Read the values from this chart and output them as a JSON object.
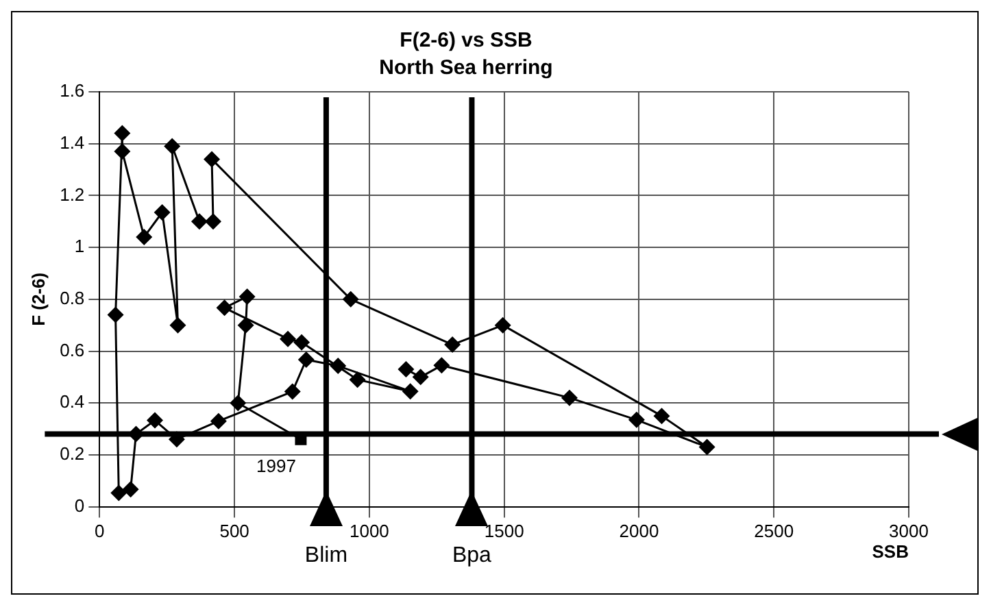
{
  "chart_data": {
    "type": "line",
    "title": "F(2-6) vs SSB",
    "subtitle": "North Sea herring",
    "xlabel": "SSB",
    "ylabel": "F (2-6)",
    "xlim": [
      0,
      3000
    ],
    "xticks": [
      0,
      500,
      1000,
      1500,
      2000,
      2500,
      3000
    ],
    "ylim": [
      0,
      1.6
    ],
    "yticks": [
      0,
      0.2,
      0.4,
      0.6,
      0.8,
      1,
      1.2,
      1.4,
      1.6
    ],
    "grid": true,
    "series": [
      {
        "color": "#000000",
        "marker": "diamond",
        "x": [
          1136,
          1190,
          1268,
          1742,
          1991,
          2252,
          2084,
          1495,
          1308,
          931,
          416,
          421,
          370,
          269,
          290,
          232,
          165,
          84,
          84,
          59,
          71,
          115,
          135,
          205,
          286,
          441,
          715,
          766,
          884,
          1152,
          956,
          749,
          698,
          463,
          547,
          542,
          513,
          746
        ],
        "values": [
          0.53,
          0.5,
          0.545,
          0.42,
          0.335,
          0.23,
          0.35,
          0.7,
          0.625,
          0.8,
          1.34,
          1.1,
          1.1,
          1.39,
          0.7,
          1.135,
          1.04,
          1.37,
          1.44,
          0.74,
          0.053,
          0.067,
          0.28,
          0.333,
          0.26,
          0.33,
          0.444,
          0.567,
          0.543,
          0.445,
          0.49,
          0.634,
          0.647,
          0.767,
          0.81,
          0.7,
          0.4,
          0.26
        ]
      },
      {
        "type": "scatter",
        "color": "#000000",
        "marker": "square",
        "x": [
          746
        ],
        "values": [
          0.26
        ]
      }
    ],
    "ref_lines": [
      {
        "axis": "x",
        "value": 840,
        "label": "Blim",
        "color": "#000000"
      },
      {
        "axis": "x",
        "value": 1380,
        "label": "Bpa",
        "color": "#000000"
      },
      {
        "axis": "y",
        "value": 0.28,
        "color": "#000000"
      }
    ],
    "annotations": [
      {
        "text": "1997",
        "x": 746,
        "y": 0.26
      }
    ]
  }
}
